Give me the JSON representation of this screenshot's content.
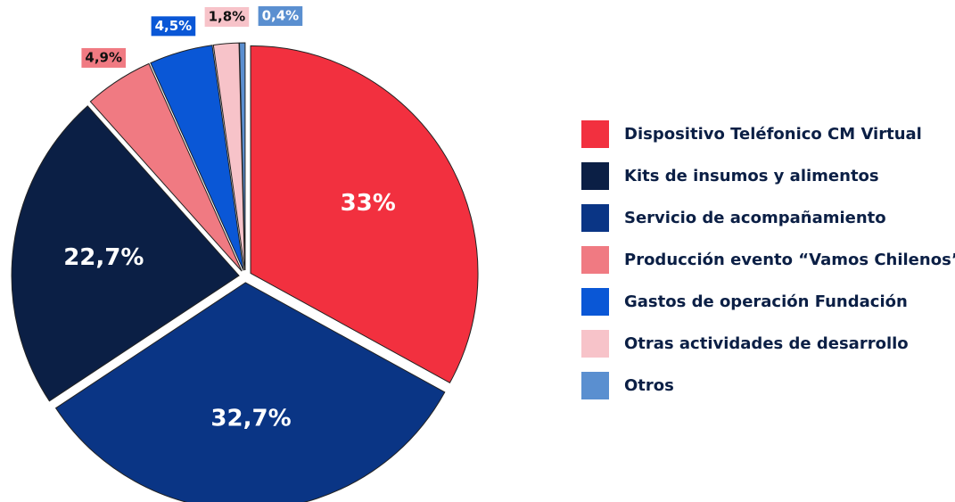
{
  "chart_data": {
    "type": "pie",
    "categories": [
      "Dispositivo Teléfonico CM Virtual",
      "Kits de insumos y alimentos",
      "Servicio de acompañamiento",
      "Producción evento “Vamos Chilenos”",
      "Gastos de operación Fundación",
      "Otras actividades de desarrollo",
      "Otros"
    ],
    "slice_order": [
      0,
      2,
      1,
      3,
      4,
      5,
      6
    ],
    "values": [
      33,
      22.7,
      32.7,
      4.9,
      4.5,
      1.8,
      0.4
    ],
    "value_labels": [
      "33%",
      "22,7%",
      "32,7%",
      "4,9%",
      "4,5%",
      "1,8%",
      "0,4%"
    ],
    "colors": [
      "#f2303f",
      "#0b1f45",
      "#0a3585",
      "#f07a82",
      "#0a57d6",
      "#f7c3c9",
      "#5a8fd0"
    ],
    "legend": "right"
  }
}
